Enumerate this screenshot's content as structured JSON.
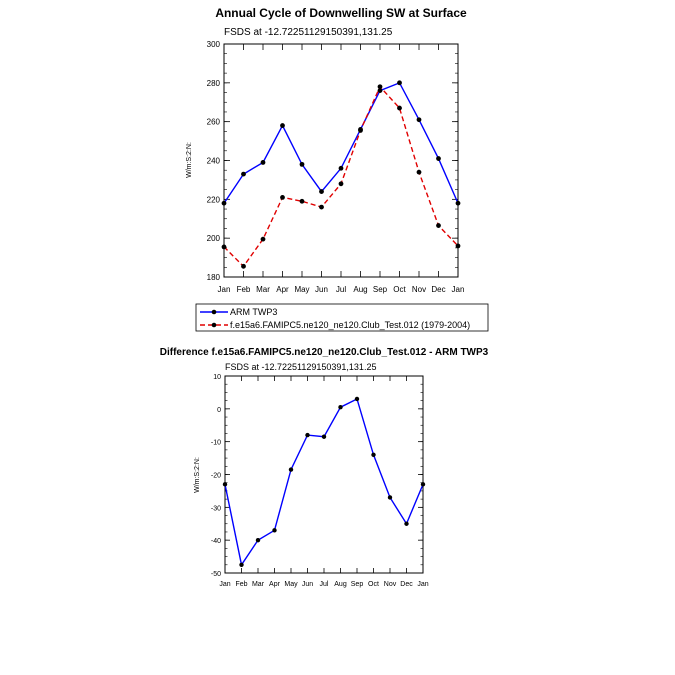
{
  "chart_data": [
    {
      "type": "line",
      "title": "Annual Cycle of Downwelling SW at Surface",
      "subtitle": "FSDS at -12.72251129150391,131.25",
      "ylabel": "W/m:S:2:N:",
      "categories": [
        "Jan",
        "Feb",
        "Mar",
        "Apr",
        "May",
        "Jun",
        "Jul",
        "Aug",
        "Sep",
        "Oct",
        "Nov",
        "Dec",
        "Jan"
      ],
      "ylim": [
        180,
        300
      ],
      "yticks": [
        180,
        200,
        220,
        240,
        260,
        280,
        300
      ],
      "legend_position": "bottom",
      "series": [
        {
          "name": "ARM TWP3",
          "color": "#0000ff",
          "dash": "solid",
          "values": [
            218,
            233,
            239,
            258,
            238,
            224,
            236,
            256,
            276,
            280,
            261,
            241,
            218
          ]
        },
        {
          "name": "f.e15a6.FAMIPC5.ne120_ne120.Club_Test.012 (1979-2004)",
          "color": "#e00000",
          "dash": "dashed",
          "values": [
            195.5,
            185.5,
            199.5,
            221,
            219,
            216,
            228,
            255.5,
            278,
            267,
            234,
            206.5,
            196
          ]
        }
      ]
    },
    {
      "type": "line",
      "title": "Difference f.e15a6.FAMIPC5.ne120_ne120.Club_Test.012 - ARM TWP3",
      "subtitle": "FSDS at -12.72251129150391,131.25",
      "ylabel": "W/m:S:2:N:",
      "categories": [
        "Jan",
        "Feb",
        "Mar",
        "Apr",
        "May",
        "Jun",
        "Jul",
        "Aug",
        "Sep",
        "Oct",
        "Nov",
        "Dec",
        "Jan"
      ],
      "ylim": [
        -50,
        10
      ],
      "yticks": [
        -50,
        -40,
        -30,
        -20,
        -10,
        0,
        10
      ],
      "series": [
        {
          "color": "#0000ff",
          "dash": "solid",
          "values": [
            -23,
            -47.5,
            -40,
            -37,
            -18.5,
            -8,
            -8.5,
            0.5,
            3,
            -14,
            -27,
            -35,
            -23
          ]
        }
      ]
    }
  ]
}
